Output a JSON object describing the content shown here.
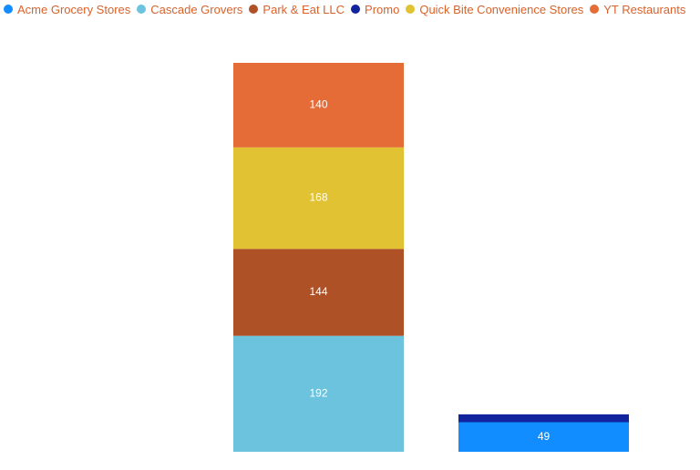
{
  "chart_data": {
    "type": "stacked-bar",
    "categories": [
      null,
      null
    ],
    "series": [
      {
        "name": "Acme Grocery Stores",
        "color": "#118dff",
        "values": [
          null,
          49
        ]
      },
      {
        "name": "Cascade Grovers",
        "color": "#6bc3de",
        "values": [
          192,
          null
        ]
      },
      {
        "name": "Park & Eat LLC",
        "color": "#ae5126",
        "values": [
          144,
          null
        ]
      },
      {
        "name": "Promo",
        "color": "#12239e",
        "values": [
          null,
          13
        ]
      },
      {
        "name": "Quick Bite Convenience Stores",
        "color": "#e1c233",
        "values": [
          168,
          null
        ]
      },
      {
        "name": "YT Restaurants",
        "color": "#e66c37",
        "values": [
          140,
          null
        ]
      }
    ],
    "legend": "top-left"
  }
}
